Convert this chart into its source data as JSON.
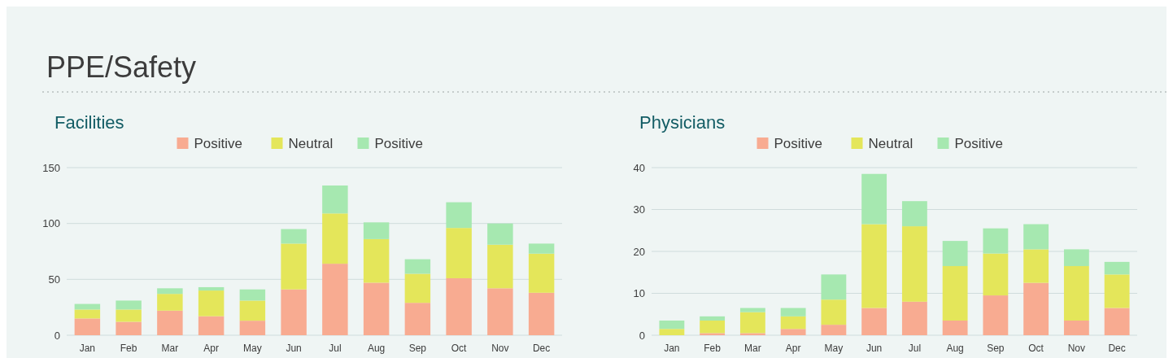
{
  "chart_data": [
    {
      "type": "other",
      "title": "PPE/Safety"
    },
    {
      "type": "bar",
      "title": "Facilities",
      "stacked": true,
      "legend": "top",
      "grid": "y",
      "categories": [
        "Jan",
        "Feb",
        "Mar",
        "Apr",
        "May",
        "Jun",
        "Jul",
        "Aug",
        "Sep",
        "Oct",
        "Nov",
        "Dec"
      ],
      "ylim": [
        0,
        150
      ],
      "yticks": [
        0,
        50,
        100,
        150
      ],
      "series": [
        {
          "name": "Positive",
          "color": "#f8ab91",
          "values": [
            15,
            12,
            22,
            17,
            13,
            41,
            64,
            47,
            29,
            51,
            42,
            38
          ]
        },
        {
          "name": "Neutral",
          "color": "#e4e65a",
          "values": [
            8,
            11,
            15,
            23,
            18,
            41,
            45,
            39,
            26,
            45,
            39,
            35
          ]
        },
        {
          "name": "Positive",
          "color": "#a6e8b0",
          "values": [
            5,
            8,
            5,
            3,
            10,
            13,
            25,
            15,
            13,
            23,
            19,
            9
          ]
        }
      ]
    },
    {
      "type": "bar",
      "title": "Physicians",
      "stacked": true,
      "legend": "top",
      "grid": "y",
      "categories": [
        "Jan",
        "Feb",
        "Mar",
        "Apr",
        "May",
        "Jun",
        "Jul",
        "Aug",
        "Sep",
        "Oct",
        "Nov",
        "Dec"
      ],
      "ylim": [
        0,
        40
      ],
      "yticks": [
        0,
        10,
        20,
        30,
        40
      ],
      "series": [
        {
          "name": "Positive",
          "color": "#f8ab91",
          "values": [
            0,
            0.5,
            0.5,
            1.5,
            2.5,
            6.5,
            8,
            3.5,
            9.5,
            12.5,
            3.5,
            6.5
          ]
        },
        {
          "name": "Neutral",
          "color": "#e4e65a",
          "values": [
            1.5,
            3,
            5,
            3,
            6,
            20,
            18,
            13,
            10,
            8,
            13,
            8
          ]
        },
        {
          "name": "Positive",
          "color": "#a6e8b0",
          "values": [
            2,
            1,
            1,
            2,
            6,
            12,
            6,
            6,
            6,
            6,
            4,
            3
          ]
        }
      ]
    }
  ]
}
